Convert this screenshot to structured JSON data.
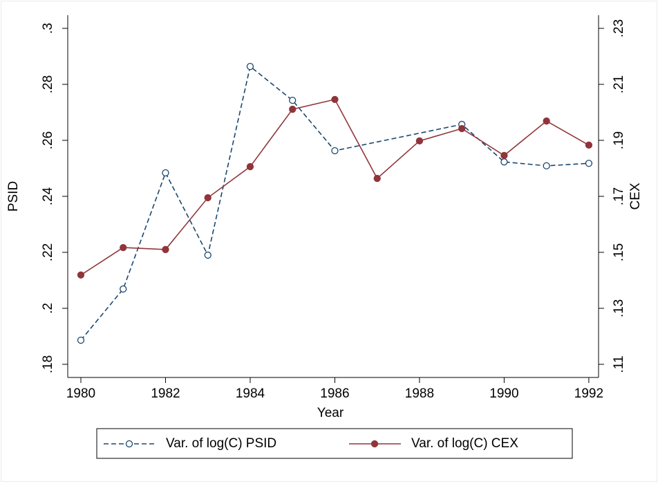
{
  "chart_data": {
    "type": "line",
    "xlabel": "Year",
    "ylabel": "PSID",
    "y2label": "CEX",
    "xlim": [
      1979.69,
      1992.23
    ],
    "xticks": [
      1980,
      1982,
      1984,
      1986,
      1988,
      1990,
      1992
    ],
    "ylim": [
      0.1753,
      0.3047
    ],
    "yticks": [
      {
        "value": 0.18,
        "label": ".18"
      },
      {
        "value": 0.2,
        "label": ".2"
      },
      {
        "value": 0.22,
        "label": ".22"
      },
      {
        "value": 0.24,
        "label": ".24"
      },
      {
        "value": 0.26,
        "label": ".26"
      },
      {
        "value": 0.28,
        "label": ".28"
      },
      {
        "value": 0.3,
        "label": ".3"
      }
    ],
    "y2lim": [
      0.1053,
      0.2347
    ],
    "y2ticks": [
      {
        "value": 0.11,
        "label": ".11"
      },
      {
        "value": 0.13,
        "label": ".13"
      },
      {
        "value": 0.15,
        "label": ".15"
      },
      {
        "value": 0.17,
        "label": ".17"
      },
      {
        "value": 0.19,
        "label": ".19"
      },
      {
        "value": 0.21,
        "label": ".21"
      },
      {
        "value": 0.23,
        "label": ".23"
      }
    ],
    "series": [
      {
        "name": "Var. of log(C) PSID",
        "color": "#1a476f",
        "dashed": true,
        "marker": "hollow-circle",
        "x": [
          1980,
          1981,
          1982,
          1983,
          1984,
          1985,
          1986,
          1989,
          1990,
          1991,
          1992
        ],
        "values": [
          0.1886,
          0.2069,
          0.2484,
          0.219,
          0.2864,
          0.2743,
          0.2563,
          0.2657,
          0.2523,
          0.2509,
          0.2518
        ]
      },
      {
        "name": "Var. of log(C) CEX",
        "color": "#90353b",
        "dashed": false,
        "marker": "filled-circle",
        "axis": "y2",
        "x": [
          1980,
          1981,
          1982,
          1983,
          1984,
          1985,
          1986,
          1987,
          1988,
          1989,
          1990,
          1991,
          1992
        ],
        "values": [
          0.1419,
          0.1517,
          0.151,
          0.1695,
          0.1806,
          0.2011,
          0.2046,
          0.1764,
          0.1898,
          0.1942,
          0.1846,
          0.1969,
          0.1883
        ]
      }
    ]
  }
}
